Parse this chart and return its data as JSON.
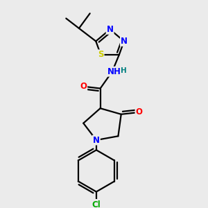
{
  "bg_color": "#ebebeb",
  "atom_colors": {
    "C": "#000000",
    "N": "#0000ff",
    "O": "#ff0000",
    "S": "#cccc00",
    "Cl": "#00aa00",
    "H": "#008080"
  },
  "bond_color": "#000000",
  "bond_lw": 1.6
}
